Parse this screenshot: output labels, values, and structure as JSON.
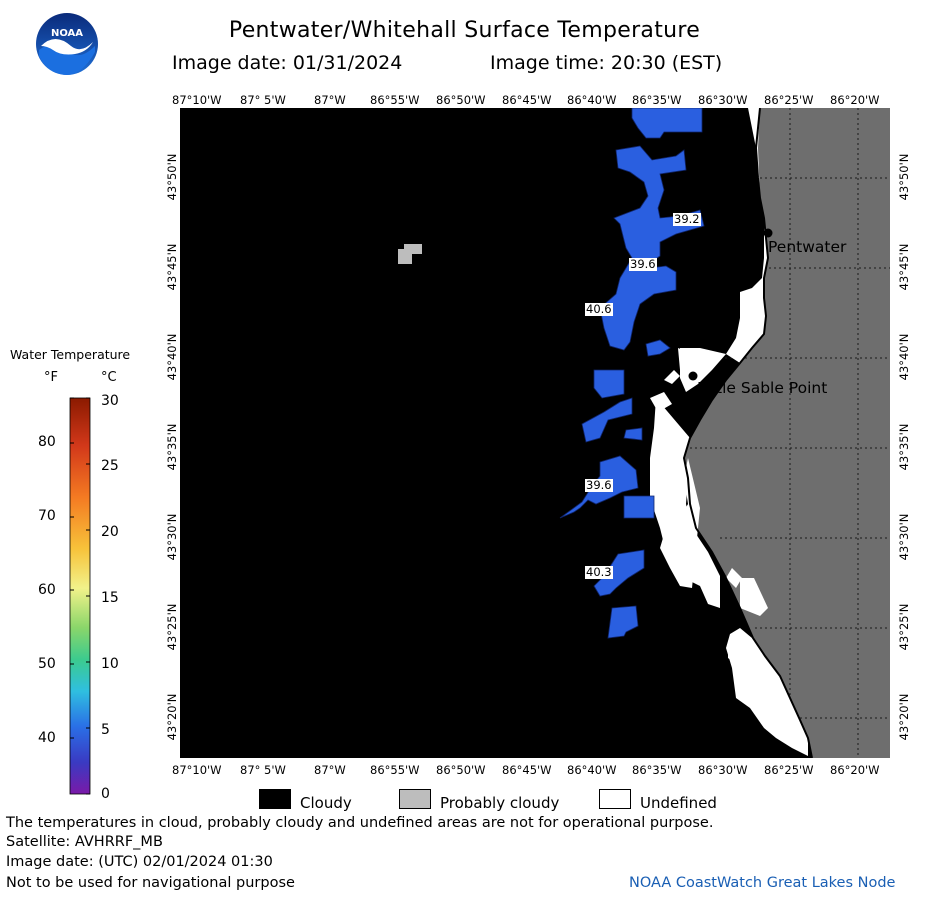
{
  "title": "Pentwater/Whitehall Surface Temperature",
  "image_date_label": "Image date: 01/31/2024",
  "image_time_label": "Image time: 20:30 (EST)",
  "logo_text": "NOAA",
  "longitude_labels": [
    "87°10'W",
    "87° 5'W",
    "87°W",
    "86°55'W",
    "86°50'W",
    "86°45'W",
    "86°40'W",
    "86°35'W",
    "86°30'W",
    "86°25'W",
    "86°20'W"
  ],
  "latitude_labels": [
    "43°50'N",
    "43°45'N",
    "43°40'N",
    "43°35'N",
    "43°30'N",
    "43°25'N",
    "43°20'N"
  ],
  "legend": {
    "title": "Water Temperature",
    "unit_f": "°F",
    "unit_c": "°C",
    "f_ticks": [
      "80",
      "70",
      "60",
      "50",
      "40"
    ],
    "c_ticks": [
      "30",
      "25",
      "20",
      "15",
      "10",
      "5",
      "0"
    ]
  },
  "places": [
    {
      "name": "Pentwater"
    },
    {
      "name": "Little Sable Point"
    }
  ],
  "temperature_labels": [
    "39.2",
    "39.6",
    "40.6",
    "39.6",
    "40.3"
  ],
  "key": {
    "cloudy": "Cloudy",
    "probably_cloudy": "Probably cloudy",
    "undefined": "Undefined"
  },
  "colors": {
    "cloudy": "#000000",
    "probably_cloudy": "#bdbdbd",
    "land": "#6e6e6e",
    "water_sst": "#2a5fe0"
  },
  "footer": {
    "note": "The temperatures in cloud, probably cloudy and undefined areas are not for operational purpose.",
    "satellite": "Satellite: AVHRRF_MB",
    "utc_date": "Image date: (UTC) 02/01/2024  01:30",
    "nav_warning": "Not to be used for navigational purpose",
    "credit": "NOAA CoastWatch Great Lakes Node"
  }
}
